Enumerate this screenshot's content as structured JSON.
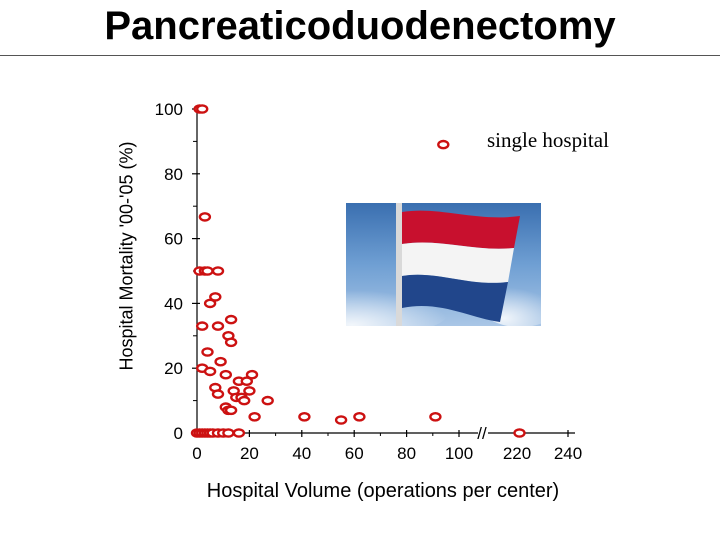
{
  "slide": {
    "title": "Pancreaticoduodenectomy"
  },
  "colors": {
    "marker": "#cc1111",
    "axis": "#000000",
    "flag_red": "#c8102e",
    "flag_white": "#ffffff",
    "flag_blue": "#21468b",
    "sky": "#4f86c6"
  },
  "chart_data": {
    "type": "scatter",
    "title": "Pancreaticoduodenectomy",
    "xlabel": "Hospital Volume (operations per center)",
    "ylabel": "Hospital Mortality '00-'05 (%)",
    "x_ticks": [
      "0",
      "20",
      "40",
      "60",
      "80",
      "100",
      "220",
      "240"
    ],
    "y_ticks": [
      "0",
      "20",
      "40",
      "60",
      "80",
      "100"
    ],
    "ylim": [
      0,
      100
    ],
    "x_axis_break": "//",
    "annotation": "single hospital",
    "image": "Netherlands flag",
    "series": [
      {
        "name": "hospitals",
        "points": [
          [
            0,
            0
          ],
          [
            1,
            0
          ],
          [
            2,
            0
          ],
          [
            3,
            0
          ],
          [
            4,
            0
          ],
          [
            5,
            0
          ],
          [
            6,
            0
          ],
          [
            8,
            0
          ],
          [
            10,
            0
          ],
          [
            12,
            0
          ],
          [
            16,
            0
          ],
          [
            1,
            100
          ],
          [
            2,
            100
          ],
          [
            3,
            66.7
          ],
          [
            1,
            50
          ],
          [
            3,
            50
          ],
          [
            4,
            50
          ],
          [
            8,
            50
          ],
          [
            7,
            42
          ],
          [
            5,
            40
          ],
          [
            13,
            35
          ],
          [
            2,
            33
          ],
          [
            8,
            33
          ],
          [
            12,
            30
          ],
          [
            13,
            28
          ],
          [
            4,
            25
          ],
          [
            9,
            22
          ],
          [
            2,
            20
          ],
          [
            5,
            19
          ],
          [
            11,
            18
          ],
          [
            21,
            18
          ],
          [
            7,
            14
          ],
          [
            8,
            12
          ],
          [
            16,
            16
          ],
          [
            19,
            16
          ],
          [
            20,
            13
          ],
          [
            14,
            13
          ],
          [
            15,
            11
          ],
          [
            17,
            11
          ],
          [
            18,
            10
          ],
          [
            11,
            8
          ],
          [
            12,
            7
          ],
          [
            13,
            7
          ],
          [
            27,
            10
          ],
          [
            22,
            5
          ],
          [
            41,
            5
          ],
          [
            55,
            4
          ],
          [
            62,
            5
          ],
          [
            91,
            5
          ],
          [
            94,
            89
          ],
          [
            221,
            0
          ]
        ]
      }
    ]
  }
}
